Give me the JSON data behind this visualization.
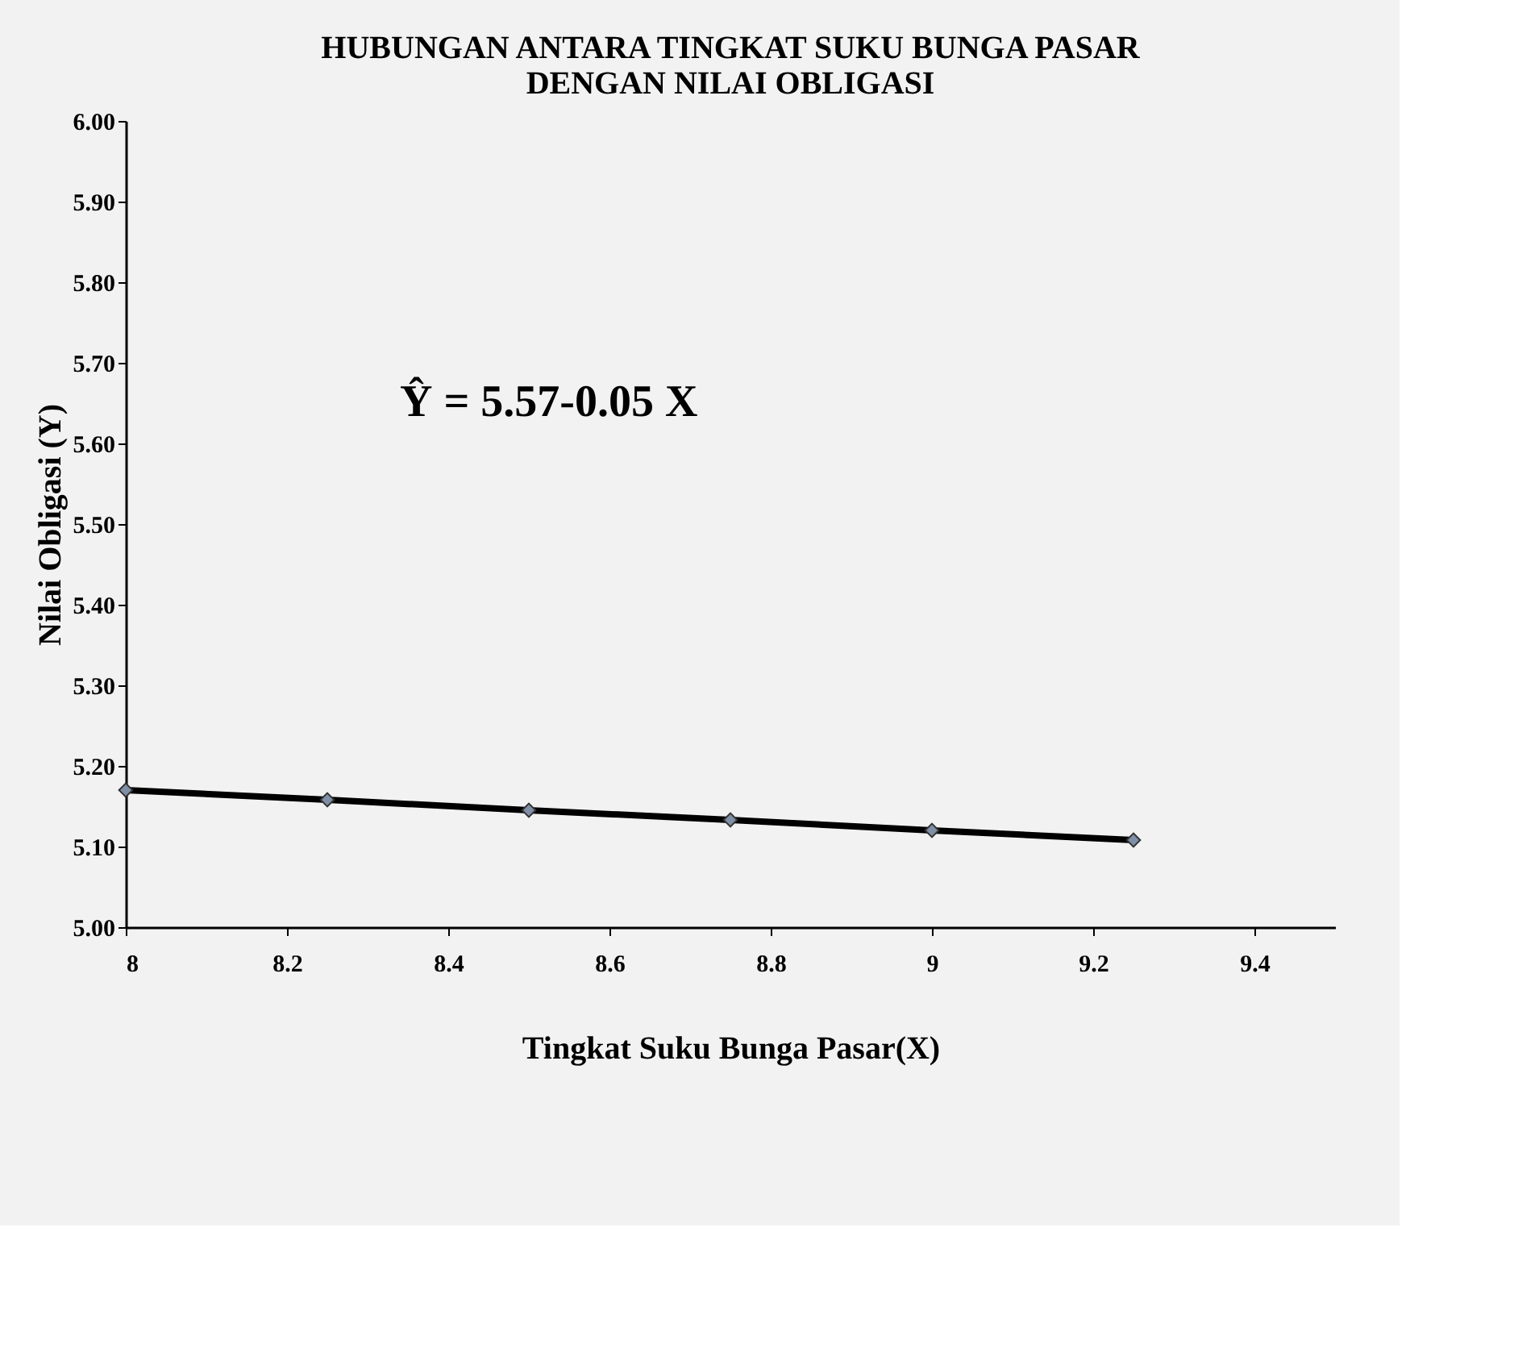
{
  "chart_data": {
    "type": "line",
    "title": "HUBUNGAN ANTARA TINGKAT SUKU BUNGA  PASAR\nDENGAN NILAI OBLIGASI",
    "xlabel": "Tingkat Suku Bunga Pasar(X)",
    "ylabel": "Nilai Obligasi  (Y)",
    "x": [
      8,
      8.25,
      8.5,
      8.75,
      9,
      9.25
    ],
    "series": [
      {
        "color": "#000000",
        "values": [
          5.17,
          5.158,
          5.145,
          5.133,
          5.12,
          5.108
        ]
      }
    ],
    "marker": "diamond",
    "line_style": "solid",
    "grid": false,
    "legend": false,
    "xlim": [
      8,
      9.5
    ],
    "xticks": [
      8,
      8.2,
      8.4,
      8.6,
      8.8,
      9,
      9.2,
      9.4
    ],
    "ylim": [
      5.0,
      6.0
    ],
    "yticks": [
      {
        "value": 5.0,
        "label": "5.00"
      },
      {
        "value": 5.1,
        "label": "5.10"
      },
      {
        "value": 5.2,
        "label": "5.20"
      },
      {
        "value": 5.3,
        "label": "5.30"
      },
      {
        "value": 5.4,
        "label": "5.40"
      },
      {
        "value": 5.5,
        "label": "5.50"
      },
      {
        "value": 5.6,
        "label": "5.60"
      },
      {
        "value": 5.7,
        "label": "5.70"
      },
      {
        "value": 5.8,
        "label": "5.80"
      },
      {
        "value": 5.9,
        "label": "5.90"
      },
      {
        "value": 6.0,
        "label": "6.00"
      }
    ],
    "annotations": [
      "Ŷ = 5.57-0.05 X"
    ]
  }
}
